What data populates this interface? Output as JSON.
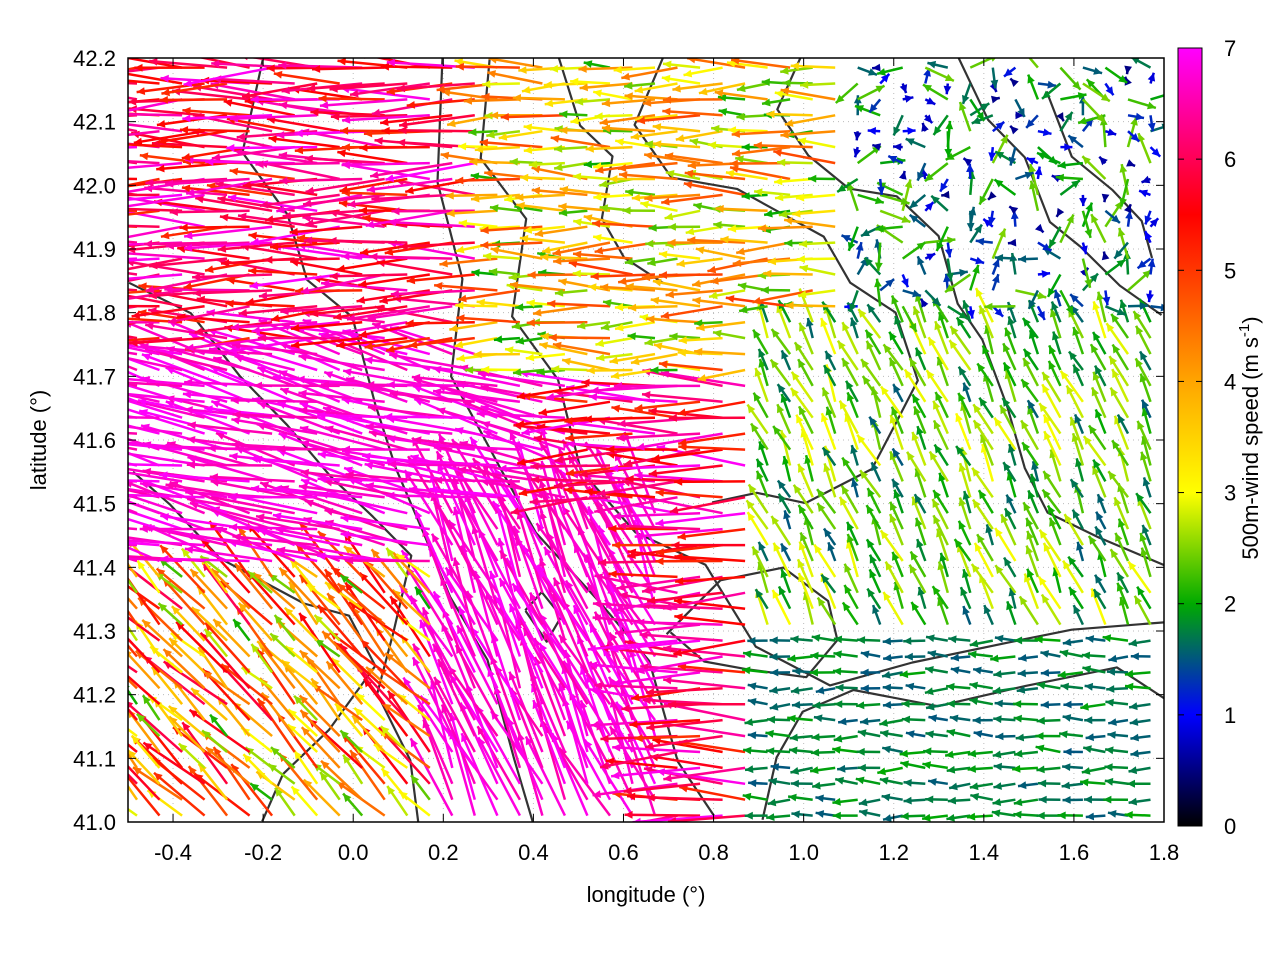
{
  "chart_data": {
    "type": "vector-field",
    "xlabel": "longitude (°)",
    "ylabel": "latitude (°)",
    "xlim": [
      -0.5,
      1.8
    ],
    "ylim": [
      41.0,
      42.2
    ],
    "x_ticks": [
      "-0.4",
      "-0.2",
      "0.0",
      "0.2",
      "0.4",
      "0.6",
      "0.8",
      "1.0",
      "1.2",
      "1.4",
      "1.6",
      "1.8"
    ],
    "y_ticks": [
      "41.0",
      "41.1",
      "41.2",
      "41.3",
      "41.4",
      "41.5",
      "41.6",
      "41.7",
      "41.8",
      "41.9",
      "42.0",
      "42.1",
      "42.2"
    ],
    "grid": true,
    "colorbar": {
      "label_prefix": "500m-wind speed (m s",
      "label_sup": "-1",
      "label_suffix": ")",
      "range": [
        0,
        7
      ],
      "ticks": [
        "0",
        "1",
        "2",
        "3",
        "4",
        "5",
        "6",
        "7"
      ],
      "colors": [
        "#000000",
        "#0000ff",
        "#00aa00",
        "#ffff00",
        "#ffa500",
        "#ff0000",
        "#ff00ff"
      ],
      "color_stops": [
        0,
        1,
        2,
        3,
        4,
        5.5,
        7
      ]
    },
    "wind_regions": [
      {
        "region": "northwest",
        "lon_range": [
          -0.5,
          0.3
        ],
        "lat_range": [
          41.75,
          42.2
        ],
        "speed_range": [
          5,
          7
        ],
        "direction": "westward"
      },
      {
        "region": "west-central",
        "lon_range": [
          -0.5,
          0.5
        ],
        "lat_range": [
          41.4,
          41.75
        ],
        "speed_range": [
          6.5,
          7
        ],
        "direction": "west-northwest"
      },
      {
        "region": "south-central",
        "lon_range": [
          0.2,
          0.7
        ],
        "lat_range": [
          41.0,
          41.5
        ],
        "speed_range": [
          6.5,
          7
        ],
        "direction": "north-northwest"
      },
      {
        "region": "southwest",
        "lon_range": [
          -0.5,
          0.2
        ],
        "lat_range": [
          41.0,
          41.4
        ],
        "speed_range": [
          2,
          6
        ],
        "direction": "northwest"
      },
      {
        "region": "north-central",
        "lon_range": [
          0.3,
          1.1
        ],
        "lat_range": [
          41.7,
          42.2
        ],
        "speed_range": [
          2,
          5
        ],
        "direction": "westward"
      },
      {
        "region": "northeast",
        "lon_range": [
          1.1,
          1.8
        ],
        "lat_range": [
          41.8,
          42.2
        ],
        "speed_range": [
          0.5,
          2.5
        ],
        "direction": "variable"
      },
      {
        "region": "east",
        "lon_range": [
          0.9,
          1.8
        ],
        "lat_range": [
          41.3,
          41.8
        ],
        "speed_range": [
          1.5,
          3
        ],
        "direction": "north-northwest"
      },
      {
        "region": "southeast",
        "lon_range": [
          0.9,
          1.8
        ],
        "lat_range": [
          41.0,
          41.3
        ],
        "speed_range": [
          1.5,
          2
        ],
        "direction": "westward"
      }
    ]
  }
}
